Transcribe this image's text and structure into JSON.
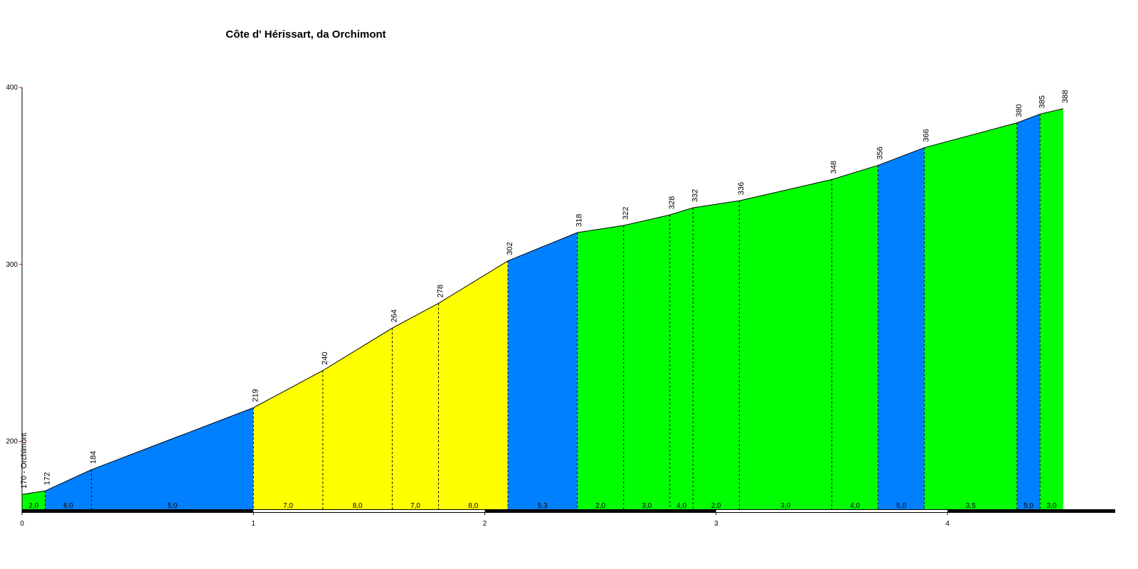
{
  "chart_data": {
    "type": "profile",
    "title": "Côte d' Hérissart, da Orchimont",
    "x": [
      0,
      0.1,
      0.3,
      1.0,
      1.3,
      1.6,
      1.8,
      2.1,
      2.4,
      2.6,
      2.8,
      2.9,
      3.1,
      3.5,
      3.7,
      3.9,
      4.3,
      4.4,
      4.5
    ],
    "values": [
      170,
      172,
      184,
      219,
      240,
      264,
      278,
      302,
      318,
      322,
      328,
      332,
      336,
      348,
      356,
      366,
      380,
      385,
      388
    ],
    "value_labels": [
      "170 - Orchimont",
      "172",
      "184",
      "219",
      "240",
      "264",
      "278",
      "302",
      "318",
      "322",
      "328",
      "332",
      "336",
      "348",
      "356",
      "366",
      "380",
      "385",
      "388"
    ],
    "gradients": {
      "values": [
        2.0,
        6.0,
        5.0,
        7.0,
        8.0,
        7.0,
        8.0,
        5.3,
        2.0,
        3.0,
        4.0,
        2.0,
        3.0,
        4.0,
        5.0,
        3.5,
        5.0,
        3.0
      ],
      "value_labels": [
        "2,0",
        "6,0",
        "5,0",
        "7,0",
        "8,0",
        "7,0",
        "8,0",
        "5,3",
        "2,0",
        "3,0",
        "4,0",
        "2,0",
        "3,0",
        "4,0",
        "5,0",
        "3,5",
        "5,0",
        "3,0"
      ],
      "colors": [
        "#00ff00",
        "#0080ff",
        "#0080ff",
        "#ffff00",
        "#ffff00",
        "#ffff00",
        "#ffff00",
        "#0080ff",
        "#00ff00",
        "#00ff00",
        "#00ff00",
        "#00ff00",
        "#00ff00",
        "#00ff00",
        "#0080ff",
        "#00ff00",
        "#0080ff",
        "#00ff00"
      ]
    },
    "xlim": [
      0,
      4.725
    ],
    "xticks": [
      0,
      1,
      2,
      3,
      4
    ],
    "ylim": [
      160,
      400
    ],
    "yticks": [
      200,
      300,
      400
    ]
  }
}
